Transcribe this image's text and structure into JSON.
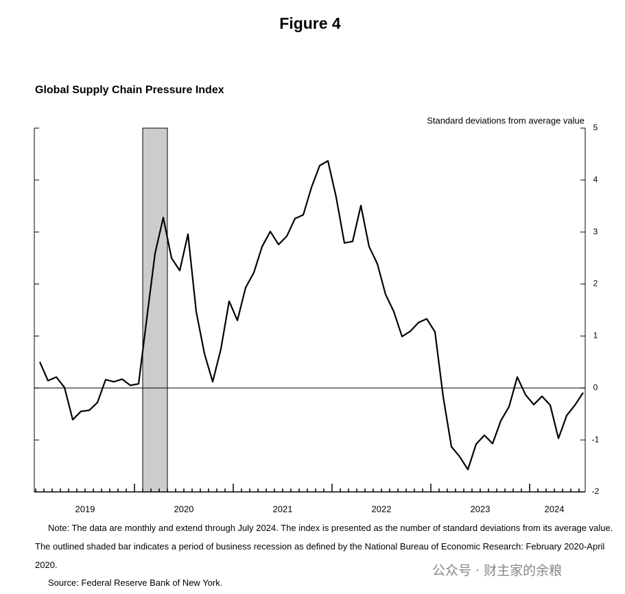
{
  "figure_label": "Figure 4",
  "chart_data": {
    "type": "line",
    "title": "Global Supply Chain Pressure Index",
    "y_axis_label": "Standard deviations from average value",
    "categories": [
      null,
      null,
      null,
      null,
      null,
      null,
      "2019",
      null,
      null,
      null,
      null,
      null,
      null,
      null,
      null,
      null,
      null,
      null,
      "2020",
      null,
      null,
      null,
      null,
      null,
      null,
      null,
      null,
      null,
      null,
      null,
      "2021",
      null,
      null,
      null,
      null,
      null,
      null,
      null,
      null,
      null,
      null,
      null,
      "2022",
      null,
      null,
      null,
      null,
      null,
      null,
      null,
      null,
      null,
      null,
      null,
      "2023",
      null,
      null,
      null,
      null,
      null,
      null,
      null,
      null,
      "2024",
      null,
      null,
      null
    ],
    "series": [
      {
        "name": "Global Supply Chain Pressure Index",
        "color": "#000000",
        "values": [
          0.5,
          0.14,
          0.21,
          0.01,
          -0.61,
          -0.45,
          -0.43,
          -0.28,
          0.16,
          0.12,
          0.17,
          0.05,
          0.08,
          1.34,
          2.59,
          3.28,
          2.5,
          2.26,
          2.96,
          1.47,
          0.66,
          0.12,
          0.75,
          1.67,
          1.3,
          1.93,
          2.22,
          2.72,
          3.01,
          2.76,
          2.92,
          3.26,
          3.33,
          3.86,
          4.28,
          4.37,
          3.67,
          2.79,
          2.82,
          3.51,
          2.72,
          2.39,
          1.8,
          1.47,
          0.99,
          1.09,
          1.26,
          1.33,
          1.08,
          -0.17,
          -1.13,
          -1.32,
          -1.57,
          -1.08,
          -0.91,
          -1.07,
          -0.63,
          -0.36,
          0.21,
          -0.13,
          -0.32,
          -0.16,
          -0.33,
          -0.97,
          -0.53,
          -0.33,
          -0.09
        ]
      }
    ],
    "recession": {
      "start": 13,
      "end": 15,
      "color": "#cccccc"
    },
    "ylim": [
      -2,
      5
    ],
    "yticks": [
      -2,
      -1,
      0,
      1,
      2,
      3,
      4,
      5
    ],
    "zero_line": true
  },
  "note": "Note: The data are monthly and extend through July 2024. The index is presented as the number of standard deviations from its average value. The outlined shaded bar indicates a period of business recession as defined by the National Bureau of Economic Research: February 2020-April 2020.",
  "source": "Source: Federal Reserve Bank of New York.",
  "watermark": "公众号 · 财主家的余粮"
}
